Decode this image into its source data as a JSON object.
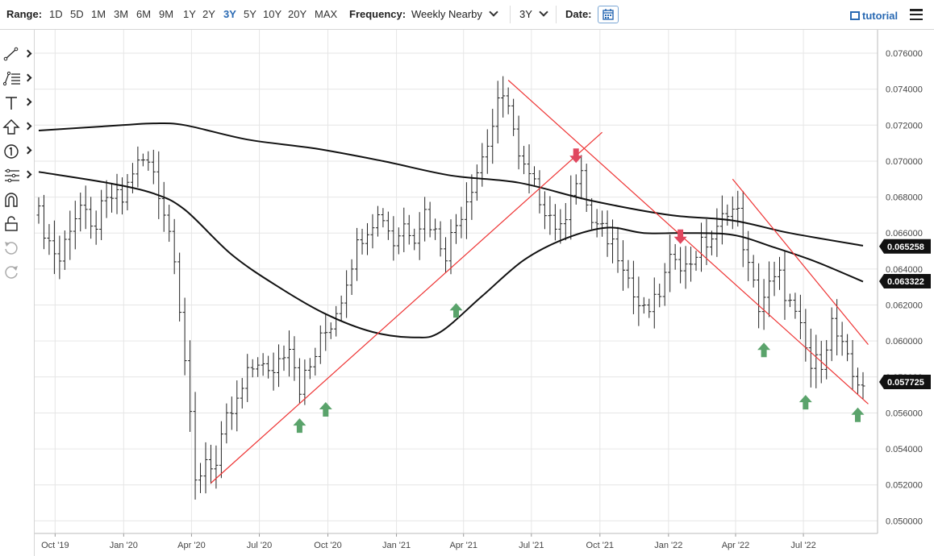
{
  "toolbar": {
    "range_label": "Range:",
    "ranges": [
      "1D",
      "5D",
      "1M",
      "3M",
      "6M",
      "9M",
      "1Y",
      "2Y",
      "3Y",
      "5Y",
      "10Y",
      "20Y",
      "MAX"
    ],
    "active_range": "3Y",
    "frequency_label": "Frequency:",
    "frequency_value": "Weekly Nearby",
    "period_value": "3Y",
    "date_label": "Date:",
    "tutorial_label": "tutorial"
  },
  "sidebar": {
    "tools": [
      "line-tool",
      "fibonacci-tool",
      "text-tool",
      "arrow-tool",
      "counter-tool",
      "measure-tool",
      "magnet-tool",
      "lock-tool",
      "undo-tool",
      "redo-tool"
    ]
  },
  "colors": {
    "price_bars": "#222222",
    "moving_average": "#111111",
    "trendline": "#ee3333",
    "arrow_up": "#5aa36b",
    "arrow_down": "#e0475f",
    "grid": "#e6e6e6",
    "accent": "#2a6ab3"
  },
  "chart_data": {
    "type": "line",
    "subtype": "weekly ohlc bars with moving averages and trendlines",
    "x_ticks": [
      "Oct '19",
      "Jan '20",
      "Apr '20",
      "Jul '20",
      "Oct '20",
      "Jan '21",
      "Apr '21",
      "Jul '21",
      "Oct '21",
      "Jan '22",
      "Apr '22",
      "Jul '22"
    ],
    "y_ticks": [
      "0.050000",
      "0.052000",
      "0.054000",
      "0.056000",
      "0.058000",
      "0.060000",
      "0.062000",
      "0.064000",
      "0.066000",
      "0.068000",
      "0.070000",
      "0.072000",
      "0.074000",
      "0.076000"
    ],
    "ylim": [
      0.0493,
      0.0773
    ],
    "price_tags": [
      {
        "value": "0.065258",
        "y": 0.065258
      },
      {
        "value": "0.063322",
        "y": 0.063322
      },
      {
        "value": "0.057725",
        "y": 0.057725
      }
    ],
    "x_axis": {
      "start": "2019-09-09",
      "end": "2022-09-19"
    },
    "closes": [
      [
        "2019-09-09",
        0.067
      ],
      [
        "2019-09-23",
        0.0655
      ],
      [
        "2019-10-07",
        0.0645
      ],
      [
        "2019-10-21",
        0.0665
      ],
      [
        "2019-11-04",
        0.0675
      ],
      [
        "2019-11-18",
        0.066
      ],
      [
        "2019-12-02",
        0.0672
      ],
      [
        "2019-12-16",
        0.068
      ],
      [
        "2019-12-30",
        0.0678
      ],
      [
        "2020-01-13",
        0.0695
      ],
      [
        "2020-01-27",
        0.07
      ],
      [
        "2020-02-10",
        0.0695
      ],
      [
        "2020-02-24",
        0.0672
      ],
      [
        "2020-03-09",
        0.065
      ],
      [
        "2020-03-23",
        0.059
      ],
      [
        "2020-04-06",
        0.052
      ],
      [
        "2020-04-20",
        0.0535
      ],
      [
        "2020-05-04",
        0.053
      ],
      [
        "2020-05-18",
        0.0555
      ],
      [
        "2020-06-01",
        0.0565
      ],
      [
        "2020-06-15",
        0.058
      ],
      [
        "2020-06-29",
        0.059
      ],
      [
        "2020-07-13",
        0.058
      ],
      [
        "2020-07-27",
        0.059
      ],
      [
        "2020-08-10",
        0.06
      ],
      [
        "2020-08-24",
        0.0575
      ],
      [
        "2020-09-07",
        0.0585
      ],
      [
        "2020-09-21",
        0.06
      ],
      [
        "2020-10-05",
        0.061
      ],
      [
        "2020-10-19",
        0.0625
      ],
      [
        "2020-11-02",
        0.0645
      ],
      [
        "2020-11-16",
        0.066
      ],
      [
        "2020-11-30",
        0.0668
      ],
      [
        "2020-12-14",
        0.067
      ],
      [
        "2020-12-28",
        0.0655
      ],
      [
        "2021-01-11",
        0.0665
      ],
      [
        "2021-01-25",
        0.066
      ],
      [
        "2021-02-08",
        0.0672
      ],
      [
        "2021-02-22",
        0.066
      ],
      [
        "2021-03-08",
        0.065
      ],
      [
        "2021-03-22",
        0.0665
      ],
      [
        "2021-04-05",
        0.068
      ],
      [
        "2021-04-19",
        0.0695
      ],
      [
        "2021-05-03",
        0.071
      ],
      [
        "2021-05-17",
        0.073
      ],
      [
        "2021-05-31",
        0.0735
      ],
      [
        "2021-06-14",
        0.07
      ],
      [
        "2021-06-28",
        0.069
      ],
      [
        "2021-07-12",
        0.068
      ],
      [
        "2021-07-26",
        0.067
      ],
      [
        "2021-08-09",
        0.066
      ],
      [
        "2021-08-23",
        0.0685
      ],
      [
        "2021-09-06",
        0.069
      ],
      [
        "2021-09-20",
        0.0665
      ],
      [
        "2021-10-04",
        0.066
      ],
      [
        "2021-10-18",
        0.0655
      ],
      [
        "2021-11-01",
        0.0645
      ],
      [
        "2021-11-15",
        0.0625
      ],
      [
        "2021-11-29",
        0.0615
      ],
      [
        "2021-12-13",
        0.062
      ],
      [
        "2021-12-27",
        0.0635
      ],
      [
        "2022-01-10",
        0.065
      ],
      [
        "2022-01-24",
        0.064
      ],
      [
        "2022-02-07",
        0.065
      ],
      [
        "2022-02-21",
        0.0655
      ],
      [
        "2022-03-07",
        0.066
      ],
      [
        "2022-03-21",
        0.0675
      ],
      [
        "2022-04-04",
        0.067
      ],
      [
        "2022-04-18",
        0.064
      ],
      [
        "2022-05-02",
        0.062
      ],
      [
        "2022-05-16",
        0.063
      ],
      [
        "2022-05-30",
        0.0635
      ],
      [
        "2022-06-13",
        0.062
      ],
      [
        "2022-06-27",
        0.0605
      ],
      [
        "2022-07-11",
        0.0585
      ],
      [
        "2022-07-25",
        0.059
      ],
      [
        "2022-08-08",
        0.061
      ],
      [
        "2022-08-22",
        0.0595
      ],
      [
        "2022-09-05",
        0.058
      ],
      [
        "2022-09-19",
        0.0577
      ]
    ],
    "moving_averages": [
      {
        "points": [
          [
            "2019-09-09",
            0.0717
          ],
          [
            "2019-12-30",
            0.072
          ],
          [
            "2020-02-10",
            0.0721
          ],
          [
            "2020-03-23",
            0.072
          ],
          [
            "2020-06-15",
            0.0712
          ],
          [
            "2020-09-14",
            0.0707
          ],
          [
            "2020-12-14",
            0.07
          ],
          [
            "2021-03-15",
            0.0692
          ],
          [
            "2021-06-14",
            0.0688
          ],
          [
            "2021-09-20",
            0.0678
          ],
          [
            "2022-01-03",
            0.067
          ],
          [
            "2022-03-28",
            0.0667
          ],
          [
            "2022-06-13",
            0.066
          ],
          [
            "2022-09-19",
            0.0653
          ]
        ]
      },
      {
        "points": [
          [
            "2019-09-09",
            0.0694
          ],
          [
            "2019-12-09",
            0.0688
          ],
          [
            "2020-02-10",
            0.0682
          ],
          [
            "2020-03-23",
            0.0673
          ],
          [
            "2020-05-25",
            0.0648
          ],
          [
            "2020-07-27",
            0.063
          ],
          [
            "2020-09-28",
            0.0615
          ],
          [
            "2020-11-30",
            0.0605
          ],
          [
            "2021-01-25",
            0.0602
          ],
          [
            "2021-03-01",
            0.0605
          ],
          [
            "2021-04-26",
            0.0625
          ],
          [
            "2021-06-21",
            0.0645
          ],
          [
            "2021-08-16",
            0.0657
          ],
          [
            "2021-10-11",
            0.0663
          ],
          [
            "2021-11-29",
            0.066
          ],
          [
            "2022-01-24",
            0.066
          ],
          [
            "2022-03-28",
            0.0659
          ],
          [
            "2022-05-23",
            0.0652
          ],
          [
            "2022-07-18",
            0.0644
          ],
          [
            "2022-09-19",
            0.0633
          ]
        ]
      }
    ],
    "trendlines": [
      {
        "from": [
          "2020-04-27",
          0.0521
        ],
        "to": [
          "2021-10-04",
          0.0716
        ]
      },
      {
        "from": [
          "2021-05-31",
          0.0745
        ],
        "to": [
          "2022-09-26",
          0.0565
        ]
      },
      {
        "from": [
          "2022-03-28",
          0.069
        ],
        "to": [
          "2022-09-26",
          0.0598
        ]
      }
    ],
    "arrows": [
      {
        "dir": "up",
        "at": [
          "2020-08-24",
          0.0553
        ]
      },
      {
        "dir": "up",
        "at": [
          "2020-09-28",
          0.0562
        ]
      },
      {
        "dir": "up",
        "at": [
          "2021-03-22",
          0.0617
        ]
      },
      {
        "dir": "down",
        "at": [
          "2021-08-30",
          0.0703
        ]
      },
      {
        "dir": "down",
        "at": [
          "2022-01-17",
          0.0658
        ]
      },
      {
        "dir": "up",
        "at": [
          "2022-05-09",
          0.0595
        ]
      },
      {
        "dir": "up",
        "at": [
          "2022-07-04",
          0.0566
        ]
      },
      {
        "dir": "up",
        "at": [
          "2022-09-12",
          0.0559
        ]
      }
    ]
  }
}
